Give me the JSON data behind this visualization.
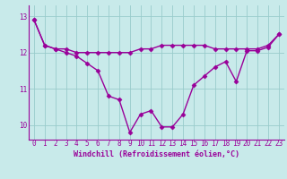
{
  "hours": [
    0,
    1,
    2,
    3,
    4,
    5,
    6,
    7,
    8,
    9,
    10,
    11,
    12,
    13,
    14,
    15,
    16,
    17,
    18,
    19,
    20,
    21,
    22,
    23
  ],
  "temp": [
    12.9,
    12.2,
    12.1,
    12.1,
    12.0,
    12.0,
    12.0,
    12.0,
    12.0,
    12.0,
    12.1,
    12.1,
    12.2,
    12.2,
    12.2,
    12.2,
    12.2,
    12.1,
    12.1,
    12.1,
    12.1,
    12.1,
    12.2,
    12.5
  ],
  "windchill": [
    12.9,
    12.2,
    12.1,
    12.0,
    11.9,
    11.7,
    11.5,
    10.8,
    10.7,
    9.8,
    10.3,
    10.4,
    9.95,
    9.95,
    10.3,
    11.1,
    11.35,
    11.6,
    11.75,
    11.2,
    12.05,
    12.05,
    12.15,
    12.5
  ],
  "line_color": "#990099",
  "marker": "D",
  "markersize": 2.5,
  "bg_color": "#c8eaea",
  "grid_color": "#99cccc",
  "xlabel": "Windchill (Refroidissement éolien,°C)",
  "ylim": [
    9.6,
    13.3
  ],
  "xlim": [
    -0.5,
    23.5
  ],
  "yticks": [
    10,
    11,
    12,
    13
  ],
  "xticks": [
    0,
    1,
    2,
    3,
    4,
    5,
    6,
    7,
    8,
    9,
    10,
    11,
    12,
    13,
    14,
    15,
    16,
    17,
    18,
    19,
    20,
    21,
    22,
    23
  ],
  "tick_fontsize": 5.5,
  "xlabel_fontsize": 6.0,
  "linewidth": 1.0
}
